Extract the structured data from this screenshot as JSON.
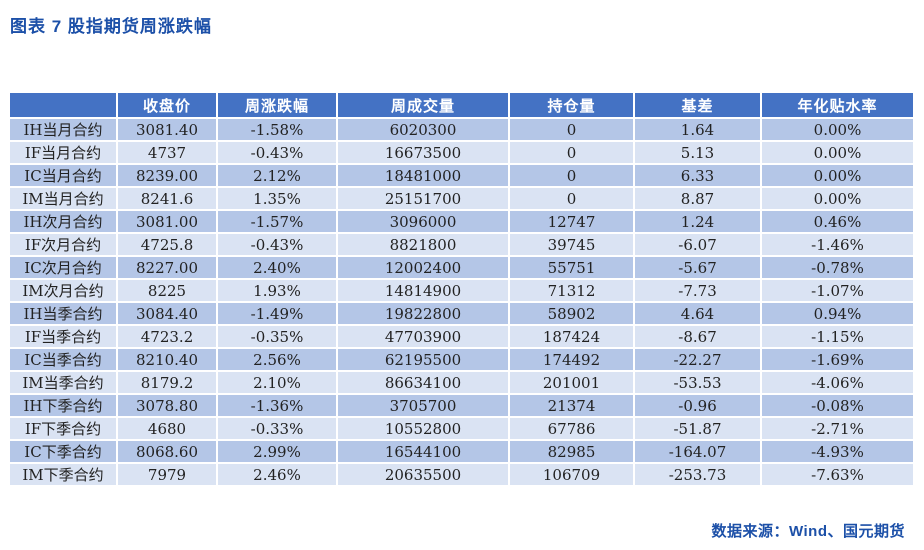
{
  "page": {
    "title": "图表 7  股指期货周涨跌幅",
    "source": "数据来源：Wind、国元期货"
  },
  "colors": {
    "title_blue": "#1c50a8",
    "header_bg": "#4472c4",
    "row_dark": "#b4c6e7",
    "row_light": "#dae3f3",
    "header_text": "#ffffff",
    "cell_text": "#222222"
  },
  "table": {
    "columns": [
      "",
      "收盘价",
      "周涨跌幅",
      "周成交量",
      "持仓量",
      "基差",
      "年化贴水率"
    ],
    "rows": [
      {
        "label": "IH当月合约",
        "close": "3081.40",
        "week_chg": "-1.58%",
        "volume": "6020300",
        "open_interest": "0",
        "basis": "1.64",
        "annualized_discount": "0.00%"
      },
      {
        "label": "IF当月合约",
        "close": "4737",
        "week_chg": "-0.43%",
        "volume": "16673500",
        "open_interest": "0",
        "basis": "5.13",
        "annualized_discount": "0.00%"
      },
      {
        "label": "IC当月合约",
        "close": "8239.00",
        "week_chg": "2.12%",
        "volume": "18481000",
        "open_interest": "0",
        "basis": "6.33",
        "annualized_discount": "0.00%"
      },
      {
        "label": "IM当月合约",
        "close": "8241.6",
        "week_chg": "1.35%",
        "volume": "25151700",
        "open_interest": "0",
        "basis": "8.87",
        "annualized_discount": "0.00%"
      },
      {
        "label": "IH次月合约",
        "close": "3081.00",
        "week_chg": "-1.57%",
        "volume": "3096000",
        "open_interest": "12747",
        "basis": "1.24",
        "annualized_discount": "0.46%"
      },
      {
        "label": "IF次月合约",
        "close": "4725.8",
        "week_chg": "-0.43%",
        "volume": "8821800",
        "open_interest": "39745",
        "basis": "-6.07",
        "annualized_discount": "-1.46%"
      },
      {
        "label": "IC次月合约",
        "close": "8227.00",
        "week_chg": "2.40%",
        "volume": "12002400",
        "open_interest": "55751",
        "basis": "-5.67",
        "annualized_discount": "-0.78%"
      },
      {
        "label": "IM次月合约",
        "close": "8225",
        "week_chg": "1.93%",
        "volume": "14814900",
        "open_interest": "71312",
        "basis": "-7.73",
        "annualized_discount": "-1.07%"
      },
      {
        "label": "IH当季合约",
        "close": "3084.40",
        "week_chg": "-1.49%",
        "volume": "19822800",
        "open_interest": "58902",
        "basis": "4.64",
        "annualized_discount": "0.94%"
      },
      {
        "label": "IF当季合约",
        "close": "4723.2",
        "week_chg": "-0.35%",
        "volume": "47703900",
        "open_interest": "187424",
        "basis": "-8.67",
        "annualized_discount": "-1.15%"
      },
      {
        "label": "IC当季合约",
        "close": "8210.40",
        "week_chg": "2.56%",
        "volume": "62195500",
        "open_interest": "174492",
        "basis": "-22.27",
        "annualized_discount": "-1.69%"
      },
      {
        "label": "IM当季合约",
        "close": "8179.2",
        "week_chg": "2.10%",
        "volume": "86634100",
        "open_interest": "201001",
        "basis": "-53.53",
        "annualized_discount": "-4.06%"
      },
      {
        "label": "IH下季合约",
        "close": "3078.80",
        "week_chg": "-1.36%",
        "volume": "3705700",
        "open_interest": "21374",
        "basis": "-0.96",
        "annualized_discount": "-0.08%"
      },
      {
        "label": "IF下季合约",
        "close": "4680",
        "week_chg": "-0.33%",
        "volume": "10552800",
        "open_interest": "67786",
        "basis": "-51.87",
        "annualized_discount": "-2.71%"
      },
      {
        "label": "IC下季合约",
        "close": "8068.60",
        "week_chg": "2.99%",
        "volume": "16544100",
        "open_interest": "82985",
        "basis": "-164.07",
        "annualized_discount": "-4.93%"
      },
      {
        "label": "IM下季合约",
        "close": "7979",
        "week_chg": "2.46%",
        "volume": "20635500",
        "open_interest": "106709",
        "basis": "-253.73",
        "annualized_discount": "-7.63%"
      }
    ]
  }
}
